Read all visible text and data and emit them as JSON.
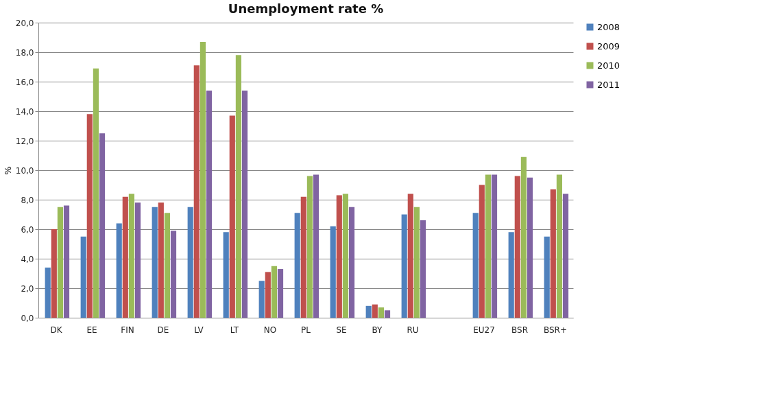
{
  "chart_data": {
    "type": "bar",
    "title": "Unemployment rate %",
    "ylabel": "%",
    "categories": [
      "DK",
      "EE",
      "FIN",
      "DE",
      "LV",
      "LT",
      "NO",
      "PL",
      "SE",
      "BY",
      "RU",
      null,
      "EU27",
      "BSR",
      "BSR+"
    ],
    "series": [
      {
        "name": "2008",
        "color": "#4f81bd",
        "values": [
          3.4,
          5.5,
          6.4,
          7.5,
          7.5,
          5.8,
          2.5,
          7.1,
          6.2,
          0.8,
          7.0,
          null,
          7.1,
          5.8,
          5.5
        ]
      },
      {
        "name": "2009",
        "color": "#c0504d",
        "values": [
          6.0,
          13.8,
          8.2,
          7.8,
          17.1,
          13.7,
          3.1,
          8.2,
          8.3,
          0.9,
          8.4,
          null,
          9.0,
          9.6,
          8.7
        ]
      },
      {
        "name": "2010",
        "color": "#9bbb59",
        "values": [
          7.5,
          16.9,
          8.4,
          7.1,
          18.7,
          17.8,
          3.5,
          9.6,
          8.4,
          0.7,
          7.5,
          null,
          9.7,
          10.9,
          9.7
        ]
      },
      {
        "name": "2011",
        "color": "#8064a2",
        "values": [
          7.6,
          12.5,
          7.8,
          5.9,
          15.4,
          15.4,
          3.3,
          9.7,
          7.5,
          0.5,
          6.6,
          null,
          9.7,
          9.5,
          8.4
        ]
      }
    ],
    "ylim": [
      0,
      20
    ],
    "yticks": [
      {
        "value": 0,
        "label": "0,0"
      },
      {
        "value": 2,
        "label": "2,0"
      },
      {
        "value": 4,
        "label": "4,0"
      },
      {
        "value": 6,
        "label": "6,0"
      },
      {
        "value": 8,
        "label": "8,0"
      },
      {
        "value": 10,
        "label": "10,0"
      },
      {
        "value": 12,
        "label": "12,0"
      },
      {
        "value": 14,
        "label": "14,0"
      },
      {
        "value": 16,
        "label": "16,0"
      },
      {
        "value": 18,
        "label": "18,0"
      },
      {
        "value": 20,
        "label": "20,0"
      }
    ],
    "grid": "y",
    "legend": "right"
  }
}
